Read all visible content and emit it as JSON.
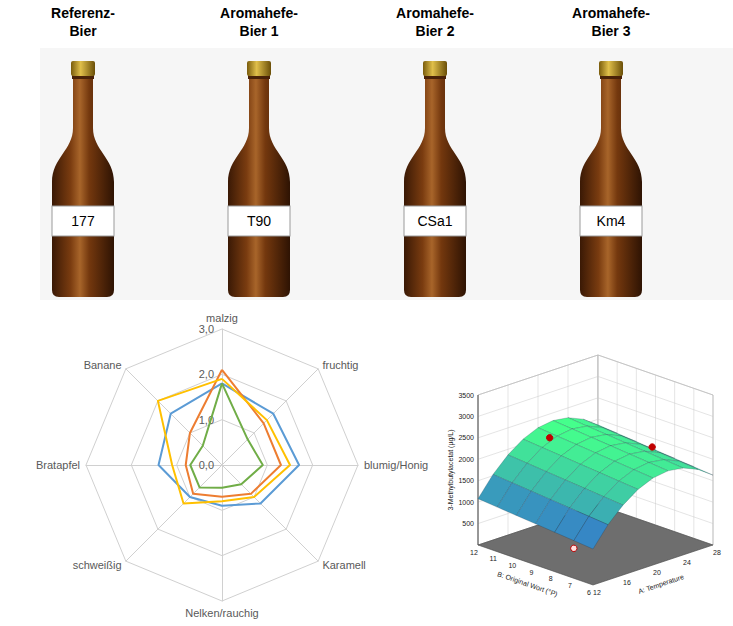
{
  "bottles": [
    {
      "header": [
        "Referenz-",
        "Bier"
      ],
      "label": "177"
    },
    {
      "header": [
        "Aromahefe-",
        "Bier 1"
      ],
      "label": "T90"
    },
    {
      "header": [
        "Aromahefe-",
        "Bier 2"
      ],
      "label": "CSa1"
    },
    {
      "header": [
        "Aromahefe-",
        "Bier 3"
      ],
      "label": "Km4"
    }
  ],
  "chart_data": [
    {
      "type": "radar",
      "indicators": [
        "malzig",
        "fruchtig",
        "blumig/Honig",
        "Karamell",
        "Nelken/rauchig",
        "schweißig",
        "Bratapfel",
        "Banane"
      ],
      "rlim": [
        0,
        3
      ],
      "rticks": [
        {
          "value": 0,
          "label": "0,0"
        },
        {
          "value": 1,
          "label": "1,0"
        },
        {
          "value": 2,
          "label": "2,0"
        },
        {
          "value": 3,
          "label": "3,0"
        }
      ],
      "grid": true,
      "series": [
        {
          "color": "#5b9bd5",
          "values": [
            1.8,
            1.6,
            1.7,
            1.2,
            0.9,
            1.0,
            1.4,
            1.6
          ]
        },
        {
          "color": "#ed7d31",
          "values": [
            2.1,
            1.3,
            1.3,
            0.9,
            0.7,
            0.9,
            0.8,
            1.0
          ]
        },
        {
          "color": "#ffc000",
          "values": [
            1.9,
            1.4,
            1.5,
            1.0,
            0.8,
            1.2,
            1.1,
            2.0
          ]
        },
        {
          "color": "#70ad47",
          "values": [
            1.8,
            0.8,
            0.9,
            0.6,
            0.5,
            0.7,
            0.7,
            0.6
          ]
        }
      ]
    },
    {
      "type": "surface",
      "xlabel": "A: Temperature",
      "ylabel": "B: Original Wort (°P)",
      "zlabel": "3-Methylbutylacetat (µg/L)",
      "x": [
        12,
        14,
        16,
        18,
        20,
        22,
        24,
        26,
        28
      ],
      "y": [
        6,
        7,
        8,
        9,
        10,
        11,
        12
      ],
      "z": [
        [
          840,
          1290,
          1630,
          1880,
          2030,
          2080,
          2030,
          1880,
          1630
        ],
        [
          880,
          1330,
          1670,
          1920,
          2070,
          2120,
          2070,
          1920,
          1670
        ],
        [
          920,
          1370,
          1710,
          1960,
          2110,
          2160,
          2110,
          1960,
          1710
        ],
        [
          960,
          1410,
          1750,
          2000,
          2150,
          2200,
          2150,
          2000,
          1750
        ],
        [
          1000,
          1450,
          1790,
          2040,
          2190,
          2240,
          2190,
          2040,
          1790
        ],
        [
          1040,
          1490,
          1830,
          2080,
          2230,
          2280,
          2230,
          2080,
          1830
        ],
        [
          1080,
          1530,
          1870,
          2120,
          2270,
          2320,
          2270,
          2120,
          1870
        ]
      ],
      "xlim": [
        12,
        28
      ],
      "xticks": [
        12,
        16,
        20,
        24,
        28
      ],
      "ylim": [
        6,
        12
      ],
      "yticks": [
        6,
        7,
        8,
        9,
        10,
        11,
        12
      ],
      "zlim": [
        0,
        3500
      ],
      "zticks": [
        500,
        1000,
        1500,
        2000,
        2500,
        3000,
        3500
      ],
      "grid": true,
      "points": [
        {
          "marker": "filled",
          "color": "#c00000",
          "x": [
            19,
            25
          ],
          "y": [
            11,
            8
          ],
          "z": [
            2250,
            2150
          ]
        },
        {
          "marker": "open",
          "color": "#c00000",
          "x": [
            12
          ],
          "y": [
            7
          ],
          "z": [
            700
          ]
        }
      ]
    }
  ]
}
